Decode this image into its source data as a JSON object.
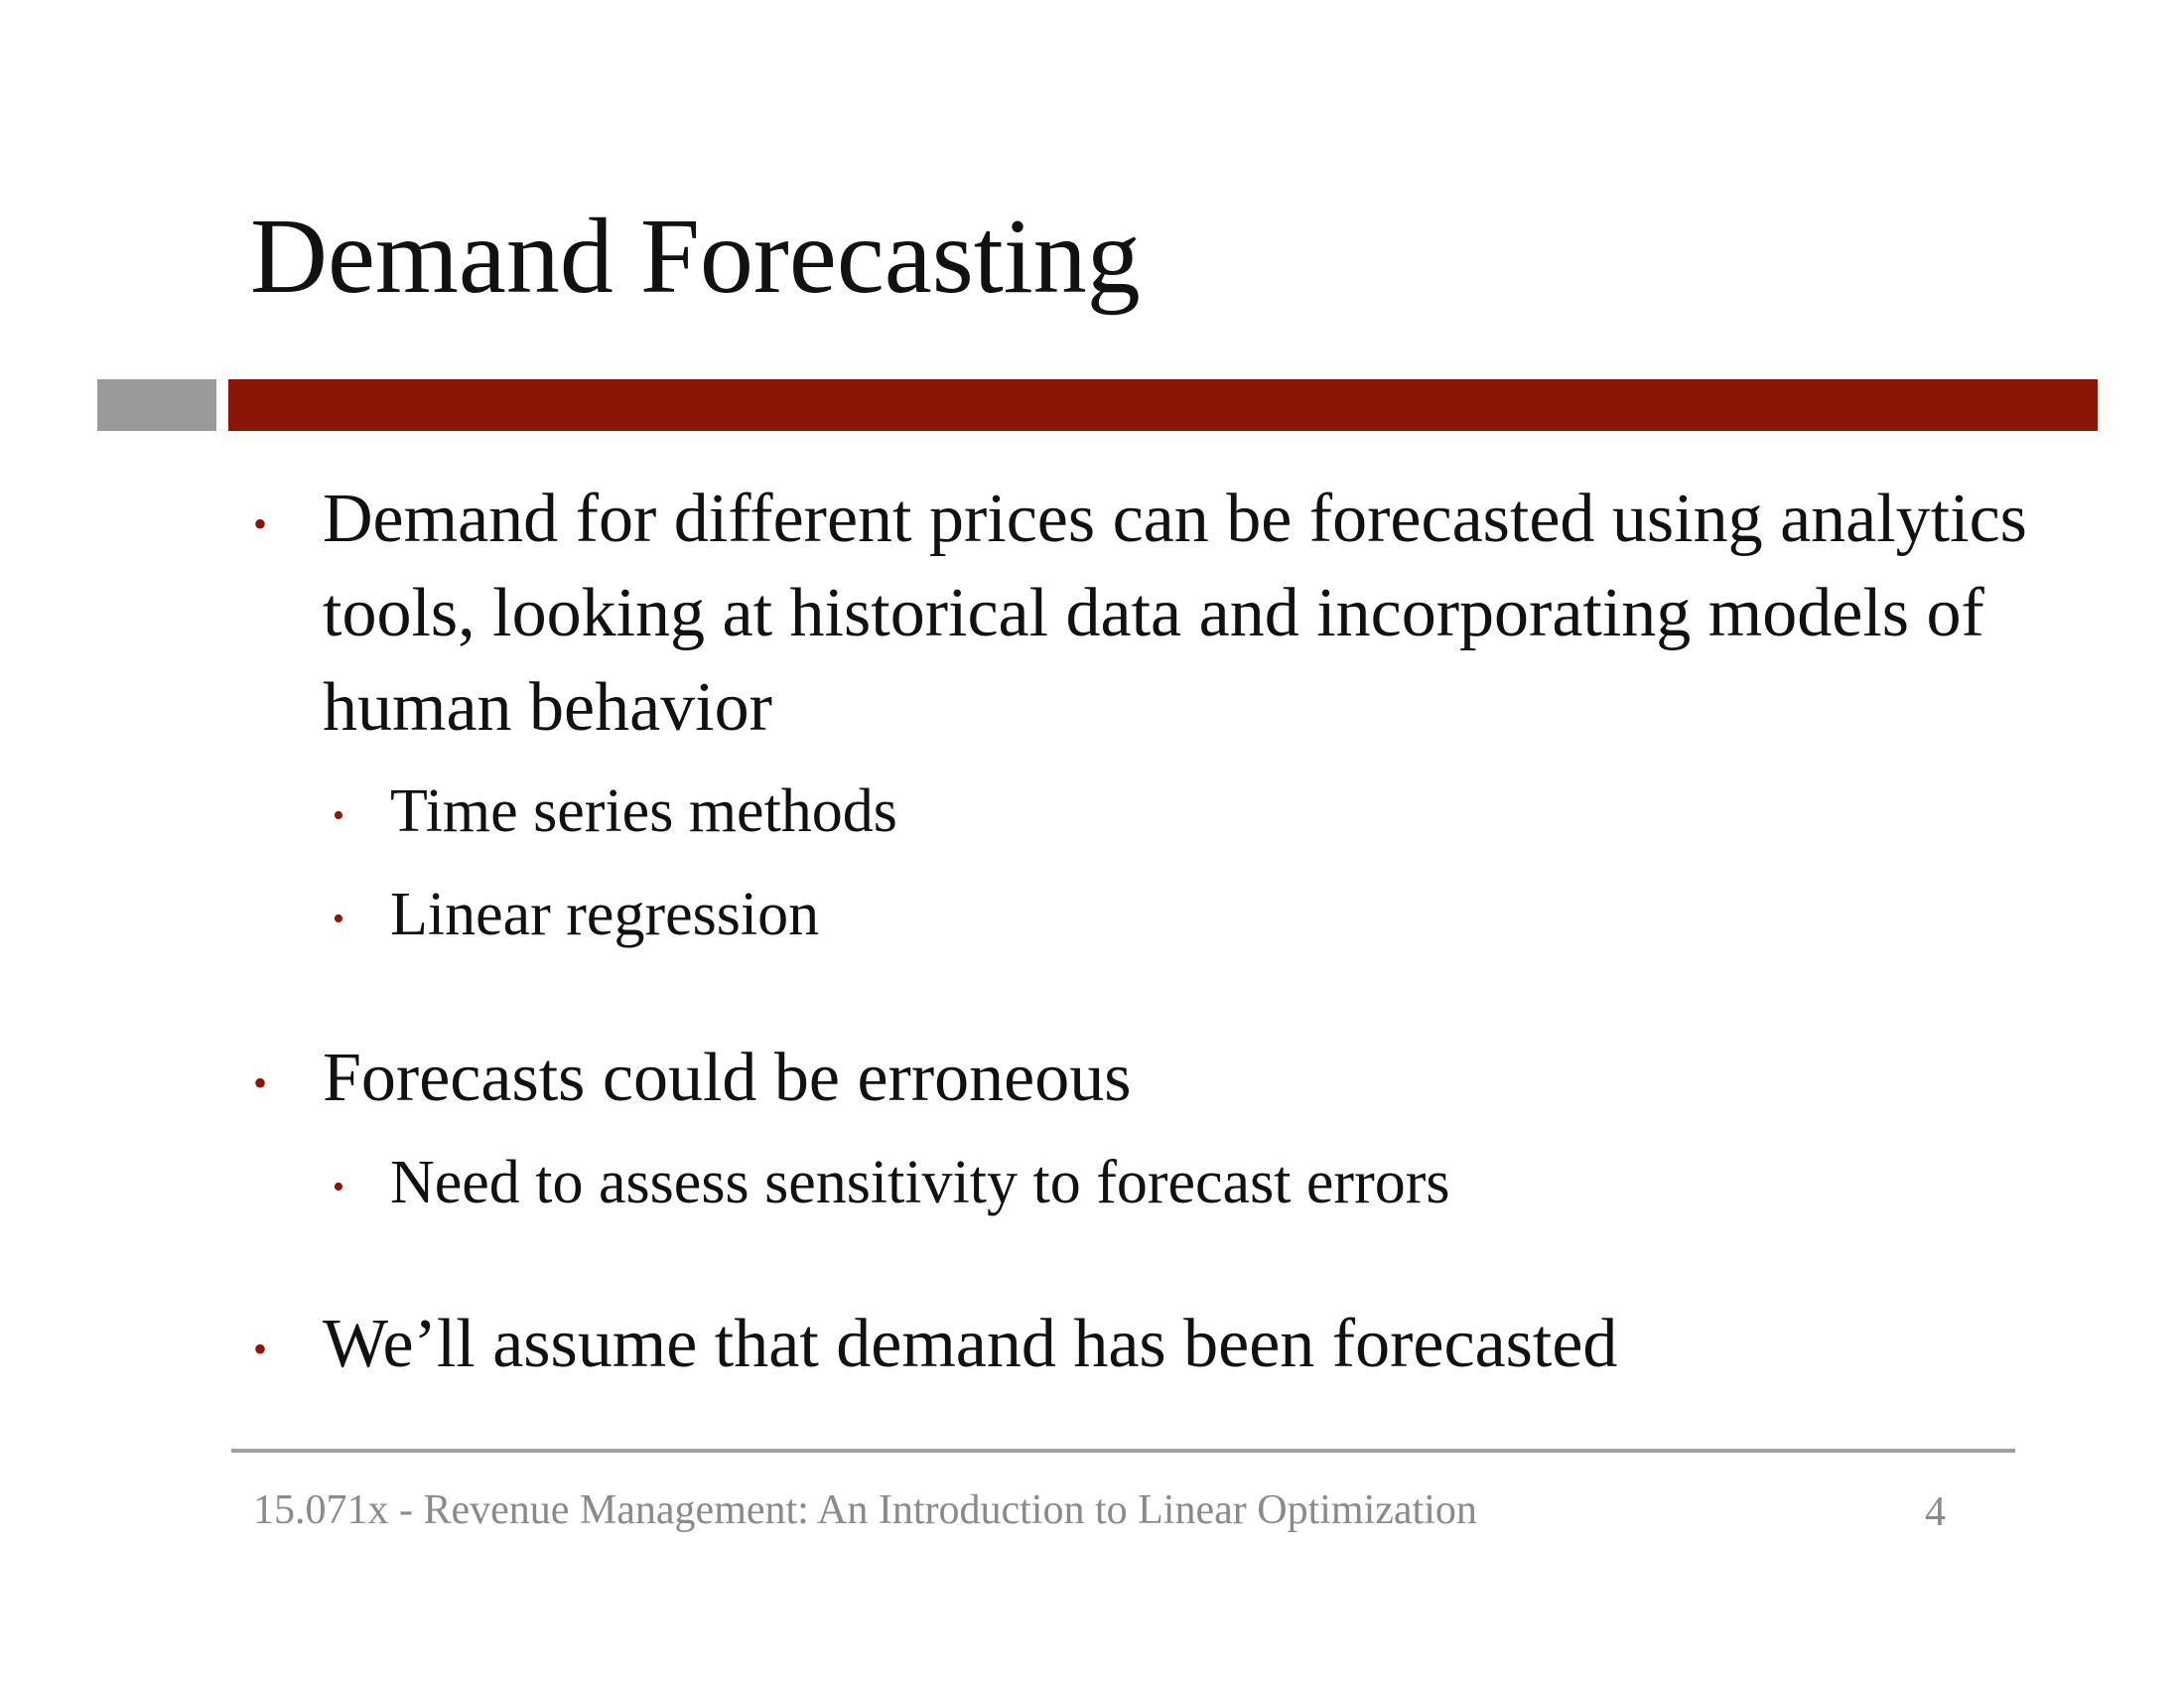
{
  "slide": {
    "title": "Demand Forecasting",
    "bullets": [
      {
        "text": "Demand for different prices can be forecasted using analytics tools, looking at historical data and incorporating models of human behavior",
        "sub": [
          "Time series methods",
          "Linear regression"
        ]
      },
      {
        "text": "Forecasts could be erroneous",
        "sub": [
          "Need to assess sensitivity to forecast errors"
        ]
      },
      {
        "text": "We’ll assume that demand has been forecasted",
        "sub": []
      }
    ],
    "bullet_symbol": "•",
    "footer": {
      "course": "15.071x - Revenue Management: An Introduction to Linear Optimization",
      "page": "4"
    },
    "colors": {
      "accent": "#8b1506",
      "accent_gray": "#9a9a9a",
      "footer_text": "#8a8a8a"
    }
  }
}
